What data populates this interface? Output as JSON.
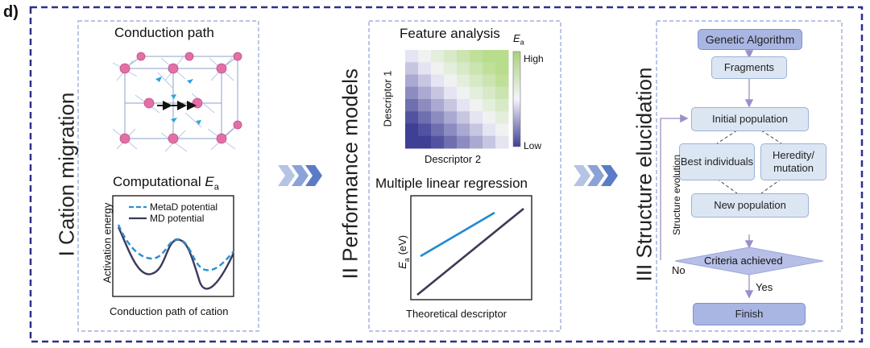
{
  "panel_label": "d)",
  "stage1": {
    "vertical_title": "I Cation migration",
    "conduction_title": "Conduction path",
    "computational_title": "Computational",
    "ea_symbol": "E",
    "ea_subscript": "a",
    "legend_metad": "MetaD potential",
    "legend_md": "MD potential",
    "ylabel": "Activation energy",
    "xlabel": "Conduction path of cation",
    "colors": {
      "metad": "#2b8fd0",
      "md": "#3a3a5e"
    }
  },
  "stage2": {
    "vertical_title": "II Performance models",
    "feature_title": "Feature analysis",
    "heatmap_ylabel": "Descriptor 1",
    "heatmap_xlabel": "Descriptor 2",
    "colorbar_symbol": "E",
    "colorbar_subscript": "a",
    "colorbar_high": "High",
    "colorbar_low": "Low",
    "regression_title": "Multiple linear regression",
    "regression_ylabel_symbol": "E",
    "regression_ylabel_subscript": "a",
    "regression_ylabel_unit": " (eV)",
    "regression_xlabel": "Theoretical descriptor",
    "colors": {
      "line_blue": "#1f8ad0",
      "line_dark": "#3a3a55",
      "heat_low": "#4b4aa0",
      "heat_mid": "#f4f4fb",
      "heat_high": "#cfe8b0"
    }
  },
  "stage3": {
    "vertical_title": "III Structure elucidation",
    "genetic": "Genetic Algorithm",
    "fragments": "Fragments",
    "initial": "Initial population",
    "best": "Best individuals",
    "heredity": "Heredity/ mutation",
    "new_pop": "New population",
    "criteria": "Criteria achieved",
    "finish": "Finish",
    "side_label": "Structure evolution",
    "no_label": "No",
    "yes_label": "Yes",
    "colors": {
      "arrow": "#9b8fc7",
      "diamond": "#b7bfe6"
    }
  },
  "arrows_color": "#5a7bc6"
}
